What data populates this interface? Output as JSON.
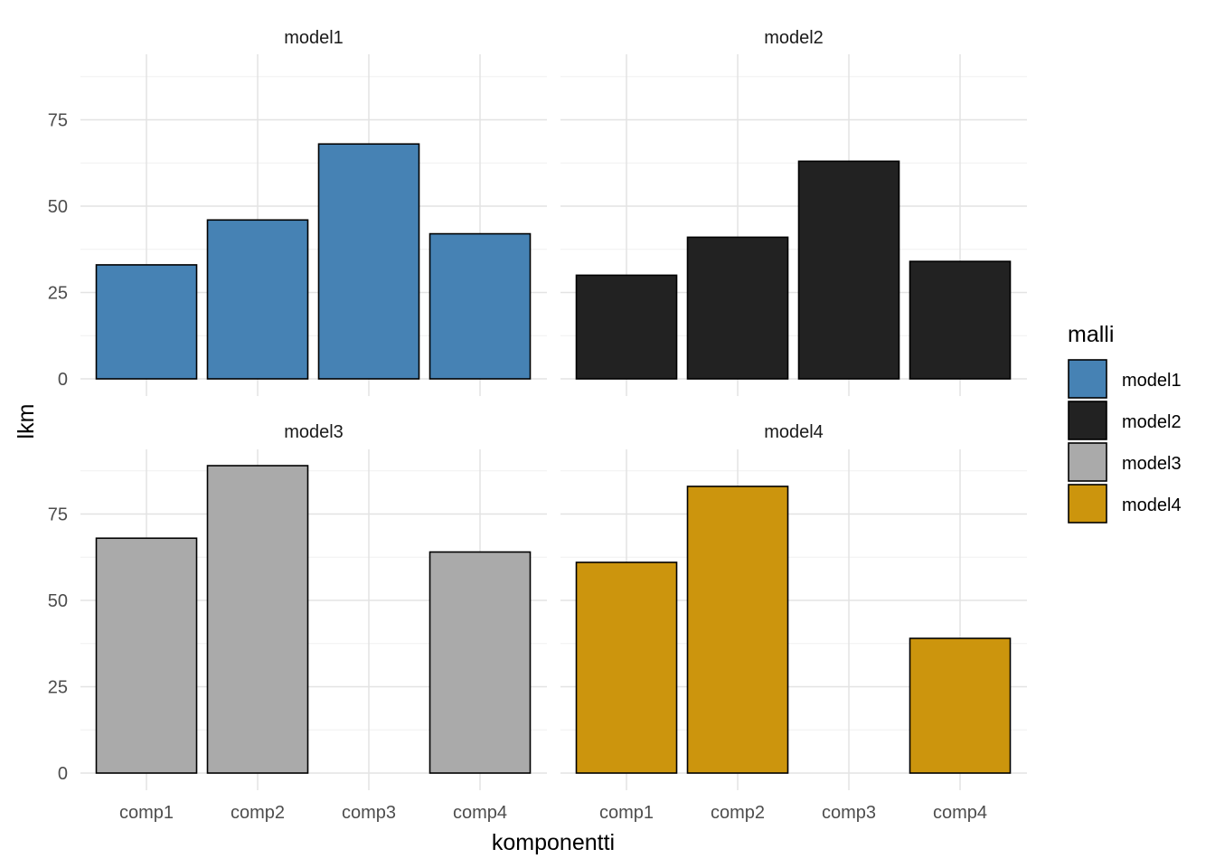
{
  "chart_data": {
    "type": "bar",
    "faceted": true,
    "xlabel": "komponentti",
    "ylabel": "lkm",
    "categories": [
      "comp1",
      "comp2",
      "comp3",
      "comp4"
    ],
    "yticks": [
      0,
      25,
      50,
      75
    ],
    "ylim": [
      0,
      93
    ],
    "grid": true,
    "legend": {
      "title": "malli",
      "placement": "right",
      "entries": [
        {
          "name": "model1",
          "color": "#4682B4"
        },
        {
          "name": "model2",
          "color": "#222222"
        },
        {
          "name": "model3",
          "color": "#AAAAAA"
        },
        {
          "name": "model4",
          "color": "#CC950D"
        }
      ]
    },
    "series": [
      {
        "name": "model1",
        "color": "#4682B4",
        "values": [
          33,
          46,
          68,
          42
        ]
      },
      {
        "name": "model2",
        "color": "#222222",
        "values": [
          30,
          41,
          63,
          34
        ]
      },
      {
        "name": "model3",
        "color": "#AAAAAA",
        "values": [
          68,
          89,
          null,
          64
        ]
      },
      {
        "name": "model4",
        "color": "#CC950D",
        "values": [
          61,
          83,
          null,
          39
        ]
      }
    ]
  }
}
